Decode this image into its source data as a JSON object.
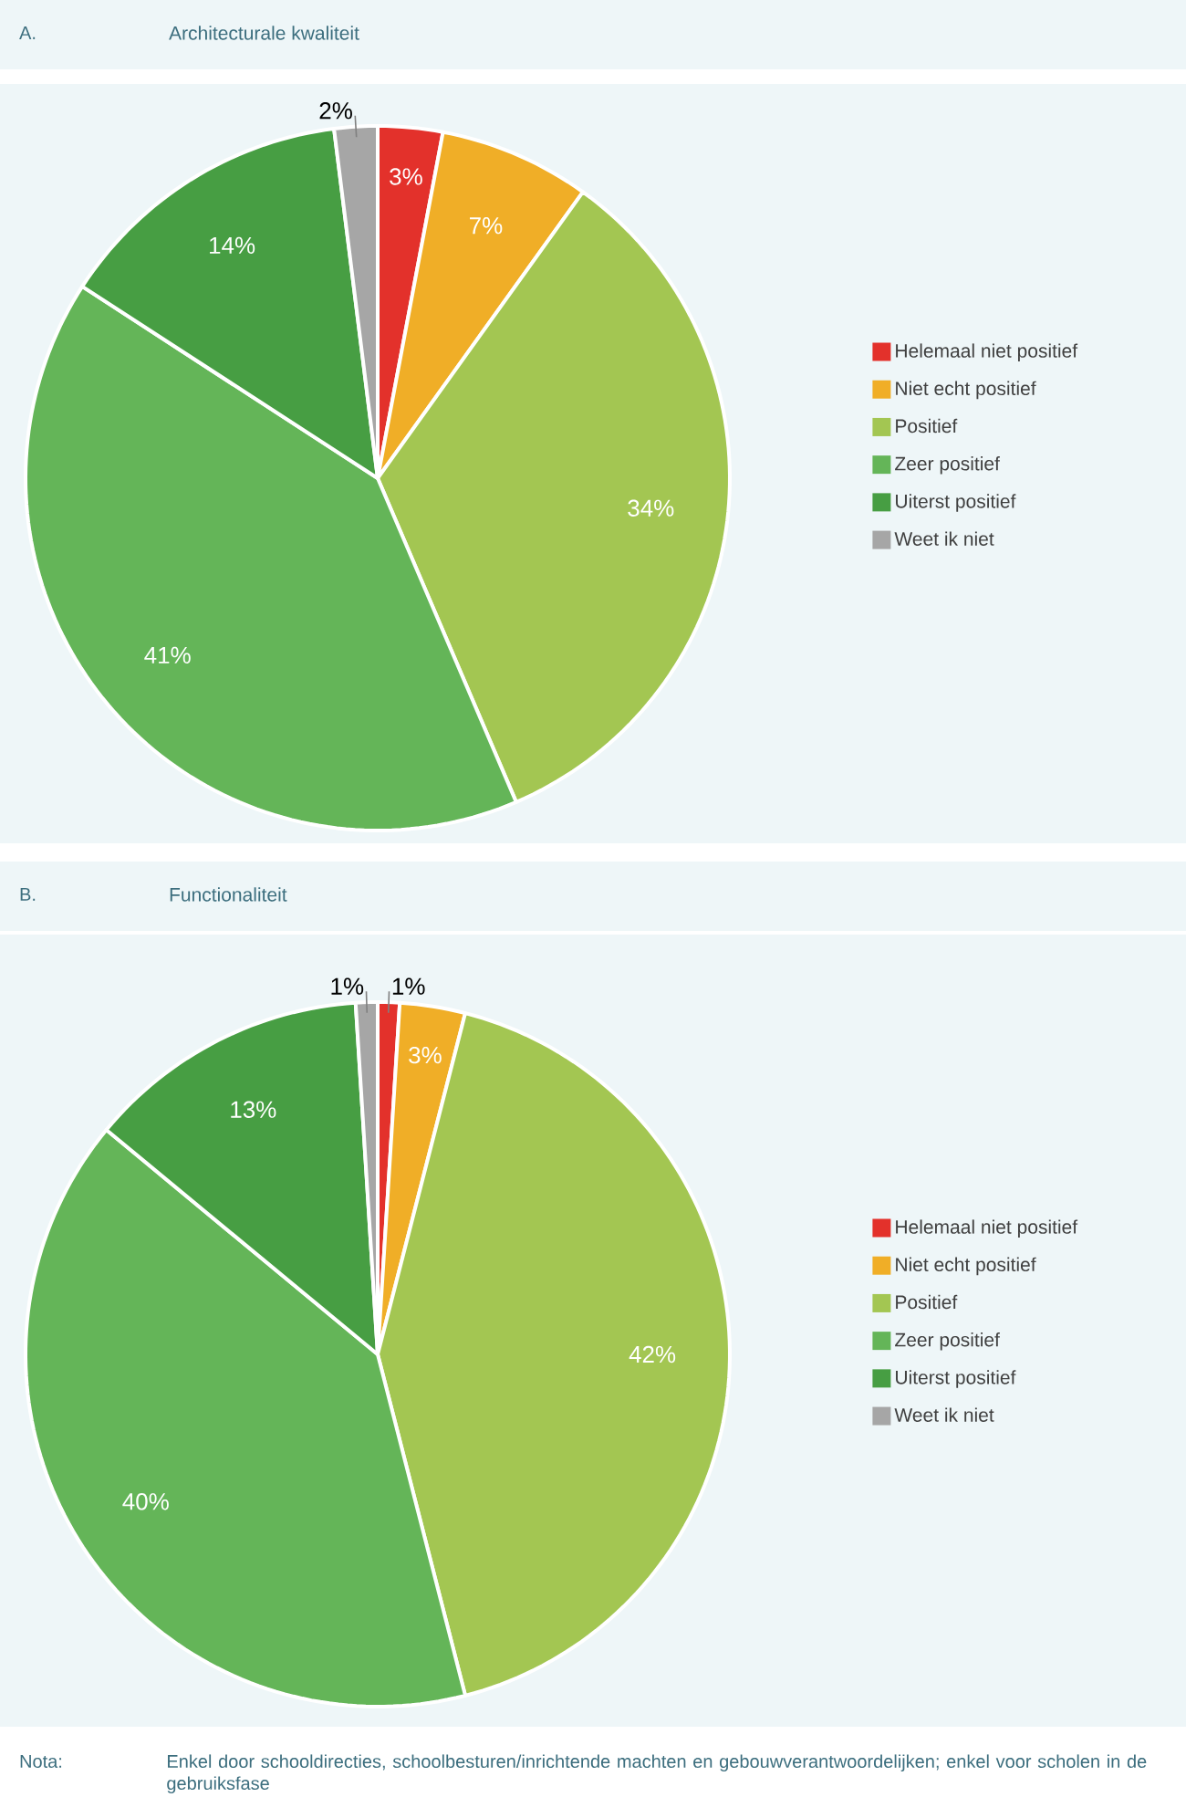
{
  "chart_data": [
    {
      "type": "pie",
      "title": "Architecturale kwaliteit",
      "annotations": [
        "A."
      ],
      "categories": [
        "Helemaal niet positief",
        "Niet echt positief",
        "Positief",
        "Zeer positief",
        "Uiterst positief",
        "Weet ik niet"
      ],
      "values": [
        3,
        7,
        34,
        41,
        14,
        2
      ],
      "value_labels": [
        "3%",
        "7%",
        "34%",
        "41%",
        "14%",
        "2%"
      ],
      "colors": [
        "#e3312b",
        "#f0ae27",
        "#a3c652",
        "#64b558",
        "#479e43",
        "#a6a6a6"
      ],
      "legend": "right"
    },
    {
      "type": "pie",
      "title": "Functionaliteit",
      "annotations": [
        "B.",
        "Nota:",
        "Enkel door schooldirecties, schoolbesturen/inrichtende machten en gebouwverantwoordelijken; enkel voor scholen in de gebruiksfase"
      ],
      "categories": [
        "Helemaal niet positief",
        "Niet echt positief",
        "Positief",
        "Zeer positief",
        "Uiterst positief",
        "Weet ik niet"
      ],
      "values": [
        1,
        3,
        42,
        40,
        13,
        1
      ],
      "value_labels": [
        "1%",
        "3%",
        "42%",
        "40%",
        "13%",
        "1%"
      ],
      "colors": [
        "#e3312b",
        "#f0ae27",
        "#a3c652",
        "#64b558",
        "#479e43",
        "#a6a6a6"
      ],
      "legend": "right"
    }
  ]
}
